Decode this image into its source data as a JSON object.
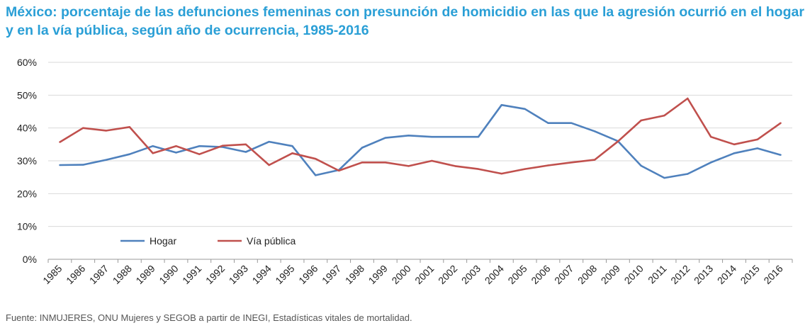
{
  "title": "México: porcentaje de las defunciones femeninas con presunción de homicidio en las que la agresión ocurrió en el hogar y en la vía pública, según año de ocurrencia, 1985-2016",
  "source": "Fuente:  INMUJERES, ONU Mujeres y SEGOB a partir de INEGI, Estadísticas vitales de mortalidad.",
  "chart_data": {
    "type": "line",
    "title": "México: porcentaje de las defunciones femeninas con presunción de homicidio en las que la agresión ocurrió en el hogar y en la vía pública, según año de ocurrencia, 1985-2016",
    "xlabel": "",
    "ylabel": "",
    "x": [
      "1985",
      "1986",
      "1987",
      "1988",
      "1989",
      "1990",
      "1991",
      "1992",
      "1993",
      "1994",
      "1995",
      "1996",
      "1997",
      "1998",
      "1999",
      "2000",
      "2001",
      "2002",
      "2003",
      "2004",
      "2005",
      "2006",
      "2007",
      "2008",
      "2009",
      "2010",
      "2011",
      "2012",
      "2013",
      "2014",
      "2015",
      "2016"
    ],
    "ylim": [
      0,
      60
    ],
    "yticks": [
      "0%",
      "10%",
      "20%",
      "30%",
      "40%",
      "50%",
      "60%"
    ],
    "grid": "horizontal",
    "legend_position": "lower-left",
    "series": [
      {
        "name": "Hogar",
        "color": "#4f81bd",
        "values": [
          28.7,
          28.8,
          30.3,
          32.0,
          34.5,
          32.5,
          34.5,
          34.2,
          32.7,
          35.8,
          34.5,
          25.6,
          27.2,
          34.0,
          37.0,
          37.7,
          37.3,
          37.3,
          37.3,
          47.0,
          45.8,
          41.5,
          41.5,
          39.0,
          36.0,
          28.5,
          24.8,
          26.0,
          29.5,
          32.3,
          33.8,
          31.8
        ]
      },
      {
        "name": "Vía pública",
        "color": "#c0504d",
        "values": [
          35.7,
          40.0,
          39.2,
          40.3,
          32.3,
          34.5,
          32.0,
          34.6,
          35.0,
          28.7,
          32.3,
          30.6,
          27.0,
          29.5,
          29.5,
          28.4,
          30.0,
          28.4,
          27.5,
          26.1,
          27.5,
          28.6,
          29.5,
          30.3,
          35.9,
          42.3,
          43.8,
          49.0,
          37.3,
          35.0,
          36.5,
          41.5
        ]
      }
    ]
  }
}
